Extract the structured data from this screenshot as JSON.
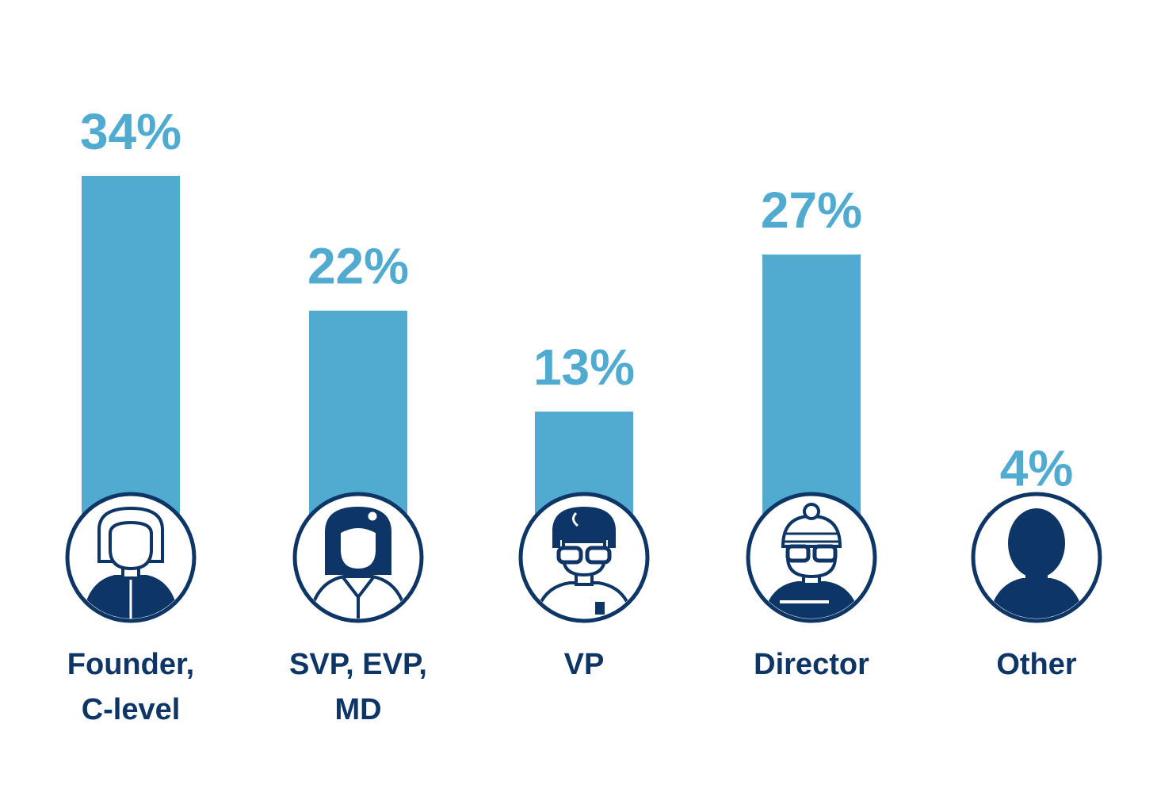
{
  "colors": {
    "bar": "#51abd1",
    "dark": "#0d3566",
    "background": "#ffffff"
  },
  "chart_data": {
    "type": "bar",
    "title": "",
    "xlabel": "",
    "ylabel": "",
    "ylim": [
      0,
      40
    ],
    "grid": false,
    "categories": [
      "Founder, C-level",
      "SVP, EVP, MD",
      "VP",
      "Director",
      "Other"
    ],
    "category_lines": [
      [
        "Founder,",
        "C-level"
      ],
      [
        "SVP, EVP,",
        "MD"
      ],
      [
        "VP"
      ],
      [
        "Director"
      ],
      [
        "Other"
      ]
    ],
    "values": [
      34,
      22,
      13,
      27,
      4
    ],
    "data_labels": [
      "34%",
      "22%",
      "13%",
      "27%",
      "4%"
    ],
    "icons": [
      "founder-avatar-icon",
      "svp-avatar-icon",
      "vp-avatar-icon",
      "director-avatar-icon",
      "other-avatar-icon"
    ]
  }
}
